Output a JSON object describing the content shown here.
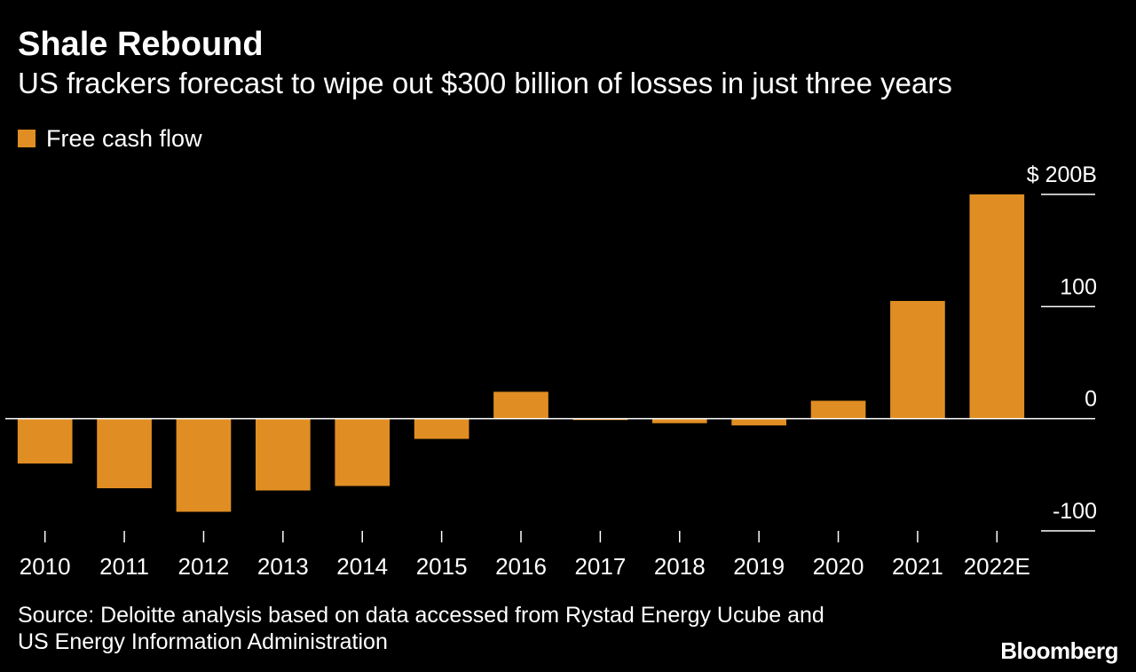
{
  "title": "Shale Rebound",
  "subtitle": "US frackers forecast to wipe out $300 billion of losses in just three years",
  "source_lines": [
    "Source: Deloitte analysis based on data accessed from Rystad Energy Ucube and",
    "US Energy Information Administration"
  ],
  "brand": "Bloomberg",
  "colors": {
    "background": "#000000",
    "bar": "#e08e23",
    "text": "#ffffff",
    "axis": "#ffffff"
  },
  "chart_data": {
    "type": "bar",
    "categories": [
      "2010",
      "2011",
      "2012",
      "2013",
      "2014",
      "2015",
      "2016",
      "2017",
      "2018",
      "2019",
      "2020",
      "2021",
      "2022E"
    ],
    "series": [
      {
        "name": "Free cash flow",
        "values": [
          -40,
          -62,
          -83,
          -64,
          -60,
          -18,
          24,
          -1,
          -4,
          -6,
          16,
          105,
          200
        ]
      }
    ],
    "y_ticks": [
      {
        "value": 200,
        "label": "$ 200B"
      },
      {
        "value": 100,
        "label": "100"
      },
      {
        "value": 0,
        "label": "0"
      },
      {
        "value": -100,
        "label": "-100"
      }
    ],
    "ylim": [
      -100,
      200
    ],
    "xlabel": "",
    "ylabel": "",
    "legend_position": "top-left",
    "grid": false,
    "y_axis_side": "right"
  }
}
